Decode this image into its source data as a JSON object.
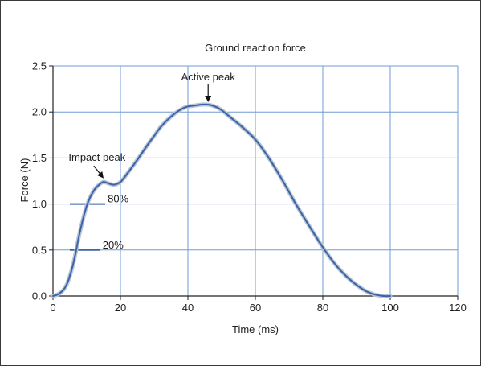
{
  "chart_data": {
    "type": "line",
    "title": "Ground reaction force",
    "xlabel": "Time (ms)",
    "ylabel": "Force (N)",
    "xlim": [
      0,
      120
    ],
    "ylim": [
      0,
      2.5
    ],
    "xticks": [
      0,
      20,
      40,
      60,
      80,
      100,
      120
    ],
    "yticks": [
      "0.0",
      "0.5",
      "1.0",
      "1.5",
      "2.0",
      "2.5"
    ],
    "grid": true,
    "line_color": "#3a63a8",
    "grid_color": "#6f9bd3",
    "series": [
      {
        "x": [
          0,
          2,
          4,
          6,
          8,
          10,
          12,
          14,
          15,
          16,
          18,
          20,
          22,
          25,
          28,
          30,
          32,
          35,
          38,
          40,
          42,
          44,
          46,
          48,
          50,
          53,
          56,
          60,
          64,
          68,
          72,
          76,
          80,
          84,
          88,
          92,
          95,
          98,
          100
        ],
        "y": [
          0,
          0.03,
          0.12,
          0.35,
          0.7,
          0.98,
          1.14,
          1.22,
          1.24,
          1.23,
          1.21,
          1.24,
          1.33,
          1.48,
          1.64,
          1.74,
          1.84,
          1.95,
          2.03,
          2.06,
          2.07,
          2.08,
          2.08,
          2.06,
          2.02,
          1.93,
          1.84,
          1.7,
          1.5,
          1.26,
          1.0,
          0.76,
          0.53,
          0.33,
          0.18,
          0.07,
          0.02,
          0.0,
          0.0
        ]
      }
    ],
    "markers": [
      {
        "label": "80%",
        "y": 1.0,
        "x1": 5,
        "x2": 15.5
      },
      {
        "label": "20%",
        "y": 0.5,
        "x1": 5,
        "x2": 14
      }
    ],
    "annotations": [
      {
        "text": "Active peak",
        "x": 46,
        "y": 2.08
      },
      {
        "text": "Impact peak",
        "x": 14,
        "y": 1.24
      }
    ]
  }
}
